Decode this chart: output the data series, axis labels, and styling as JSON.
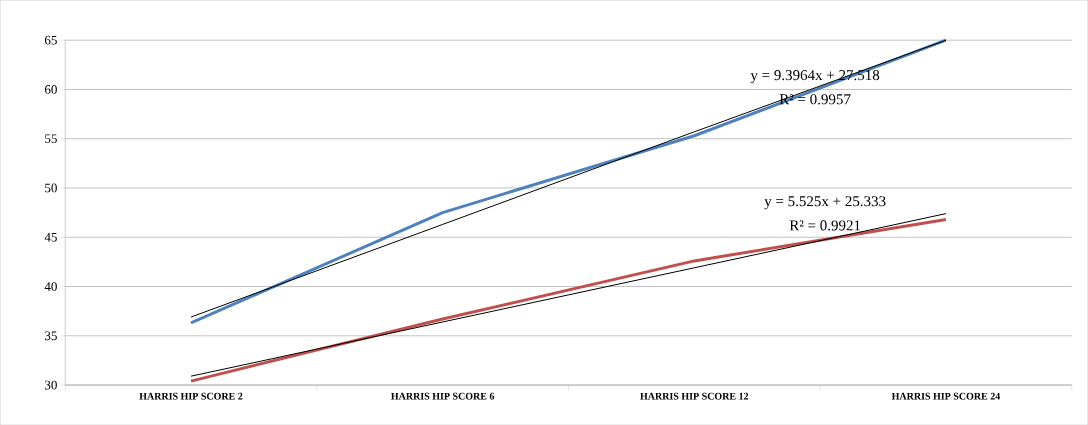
{
  "chart_data": {
    "type": "line",
    "categories": [
      "HARRIS HIP SCORE 2",
      "HARRIS HIP SCORE 6",
      "HARRIS HIP SCORE 12",
      "HARRIS HIP SCORE 24"
    ],
    "series": [
      {
        "color": "#4f81bd",
        "values": [
          36.3,
          47.5,
          55.3,
          65
        ]
      },
      {
        "color": "#c0504d",
        "values": [
          30.4,
          36.7,
          42.6,
          46.8
        ]
      },
      {
        "type": "line",
        "color": "#000000",
        "values": [
          36.9,
          46.3,
          55.7,
          65
        ]
      },
      {
        "type": "line",
        "color": "#000000",
        "values": [
          30.9,
          36.4,
          41.9,
          47.4
        ]
      }
    ],
    "ylim": [
      30,
      65
    ],
    "yticks": [
      30,
      35,
      40,
      45,
      50,
      55,
      60,
      65
    ],
    "grid": "y",
    "marker": "none",
    "line_style": "solid",
    "annotations": [
      "y = 9.3964x + 27.518",
      "R² = 0.9957",
      "y = 5.525x + 25.333",
      "R² = 0.9921"
    ]
  }
}
